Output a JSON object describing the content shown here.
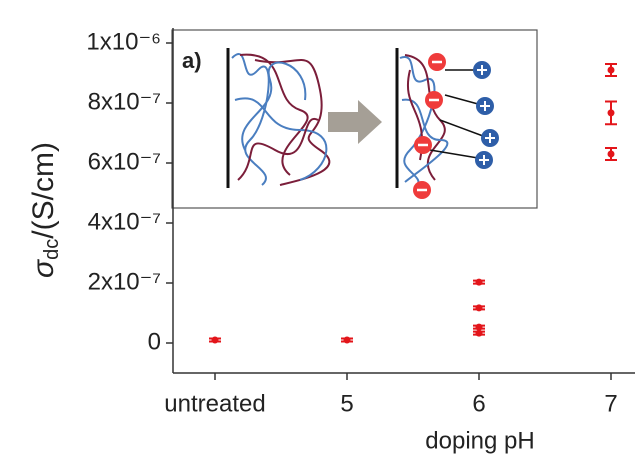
{
  "chart_data": {
    "type": "scatter",
    "inset_label": "a)",
    "y_label": {
      "symbol": "σ",
      "subscript": "dc",
      "unit": "/(S/cm)"
    },
    "x_label": "doping pH",
    "categories": [
      "untreated",
      "5",
      "6",
      "7"
    ],
    "x": [
      "untreated",
      "5",
      "6",
      "6",
      "6",
      "6",
      "7",
      "7",
      "7"
    ],
    "values": [
      1e-08,
      1e-08,
      2.03e-07,
      1.17e-07,
      5.3e-08,
      3.3e-08,
      9.1e-07,
      7.67e-07,
      6.3e-07
    ],
    "errors": [
      5e-09,
      5e-09,
      5e-09,
      5e-09,
      5e-09,
      5e-09,
      2e-08,
      3.8e-08,
      2e-08
    ],
    "color": "#e3151a",
    "ylim": [
      -1e-07,
      1.05e-06
    ],
    "yticks": [
      0,
      {
        "value": 2e-07,
        "label": "2x10⁻⁷"
      },
      {
        "value": 4e-07,
        "label": "4x10⁻⁷"
      },
      {
        "value": 6e-07,
        "label": "6x10⁻⁷"
      },
      {
        "value": 8e-07,
        "label": "8x10⁻⁷"
      },
      {
        "value": 1e-06,
        "label": "1x10⁻⁶"
      }
    ]
  }
}
